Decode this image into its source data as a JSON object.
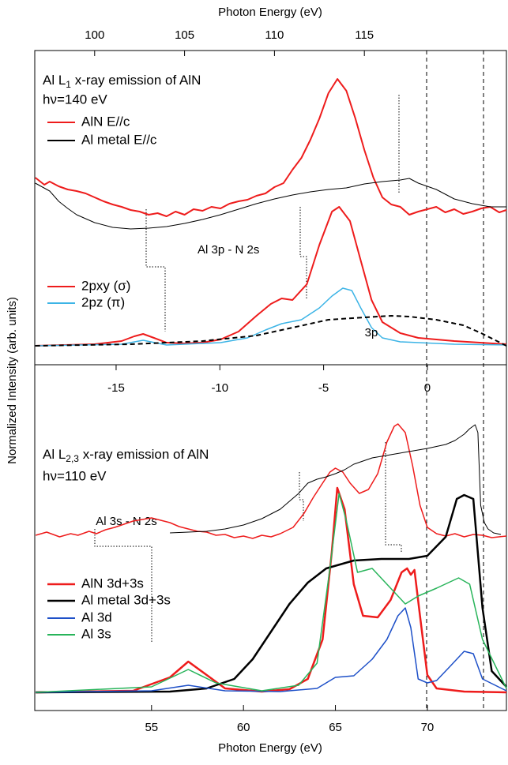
{
  "chart_data": [
    {
      "type": "line",
      "xlabel": "Photon Energy (eV)",
      "ylabel": "Normalized Intensity (arb. units)",
      "xlim": [
        96.67,
        122.9
      ],
      "xticks": [
        100,
        105,
        110,
        115
      ],
      "ylim": [
        0,
        398
      ],
      "title": "Al L",
      "title_sub": "1",
      "title_rest": " x-ray emission of AlN",
      "subtitle": "hν=140 eV",
      "annotations": [
        "Al 3p - N 2s"
      ],
      "series": [
        {
          "name": "AlN E//c",
          "color": "#ee1c1c",
          "line_width": 2,
          "x": [
            96.7,
            97.2,
            97.5,
            98,
            98.5,
            99,
            99.5,
            100,
            100.5,
            101,
            101.5,
            102,
            102.5,
            103,
            103.5,
            104,
            104.5,
            105,
            105.5,
            106,
            106.5,
            107,
            107.5,
            108,
            108.5,
            109,
            109.5,
            110,
            110.5,
            111,
            111.5,
            112,
            112.5,
            113,
            113.5,
            114,
            114.5,
            115,
            115.5,
            116,
            116.5,
            117,
            117.5,
            118,
            118.5,
            119,
            119.5,
            120,
            120.5,
            121,
            121.5,
            122,
            122.5,
            122.9
          ],
          "values": [
            237,
            228,
            232,
            226,
            222,
            220,
            217,
            212,
            207,
            203,
            200,
            196,
            194,
            190,
            192,
            188,
            194,
            190,
            197,
            195,
            200,
            198,
            204,
            207,
            209,
            214,
            217,
            225,
            230,
            247,
            262,
            285,
            312,
            344,
            362,
            347,
            312,
            272,
            237,
            212,
            203,
            200,
            190,
            194,
            197,
            200,
            193,
            197,
            191,
            194,
            198,
            200,
            193,
            196
          ]
        },
        {
          "name": "Al metal E//c",
          "color": "#000000",
          "line_width": 1,
          "x": [
            96.7,
            97.5,
            98,
            98.5,
            99,
            99.5,
            100,
            101,
            102,
            103,
            104,
            105,
            106,
            107,
            108,
            109,
            110,
            111,
            112,
            113,
            114,
            115,
            116,
            117,
            117.5,
            118,
            119,
            120,
            121,
            122,
            122.9
          ],
          "values": [
            230,
            220,
            207,
            198,
            190,
            185,
            180,
            174,
            172,
            173,
            175,
            179,
            184,
            190,
            197,
            204,
            210,
            215,
            219,
            222,
            224,
            229,
            232,
            234,
            236,
            230,
            222,
            210,
            204,
            200,
            200
          ]
        },
        {
          "name": "2pxy (σ)",
          "color": "#ee1c1c",
          "line_width": 2,
          "x": [
            96.7,
            100,
            101.5,
            102.2,
            102.7,
            103.3,
            104,
            105,
            106,
            107,
            108,
            109,
            109.8,
            110.4,
            111,
            111.8,
            112.5,
            113.2,
            113.6,
            114.2,
            114.8,
            115.4,
            116,
            117,
            118,
            120,
            122.9
          ],
          "values": [
            24,
            26,
            30,
            36,
            39,
            34,
            28,
            27,
            28,
            32,
            42,
            62,
            77,
            84,
            82,
            102,
            152,
            194,
            200,
            182,
            132,
            82,
            54,
            40,
            34,
            30,
            26
          ]
        },
        {
          "name": "2pz (π)",
          "color": "#3cb4e6",
          "line_width": 1.5,
          "x": [
            96.7,
            101.5,
            102.7,
            104,
            107,
            108.5,
            109.5,
            110.4,
            111.5,
            112.5,
            113.2,
            113.8,
            114.3,
            114.8,
            115.4,
            116,
            117,
            120,
            122.9
          ],
          "values": [
            24,
            26,
            31,
            25,
            28,
            34,
            44,
            52,
            57,
            72,
            87,
            97,
            94,
            72,
            47,
            34,
            29,
            26,
            25
          ]
        },
        {
          "name": "3p",
          "color": "#000000",
          "line_width": 2,
          "dashed": true,
          "x": [
            96.7,
            102,
            106,
            109,
            111,
            113,
            115,
            116.5,
            117.5,
            119,
            120.5,
            121.5,
            122.9
          ],
          "values": [
            24,
            26,
            30,
            37,
            47,
            57,
            60,
            62,
            61,
            57,
            50,
            40,
            24
          ]
        }
      ]
    },
    {
      "type": "line",
      "xlabel": "Photon Energy (eV)",
      "xlim": [
        48.65,
        74.3
      ],
      "xticks": [
        55,
        60,
        65,
        70
      ],
      "x2lim": [
        -18.92,
        3.81
      ],
      "x2ticks": [
        -15,
        -10,
        -5,
        0
      ],
      "ylim": [
        0,
        438
      ],
      "title": "Al L",
      "title_sub": "2,3",
      "title_rest": " x-ray emission of AlN",
      "subtitle": "hν=110 eV",
      "annotations": [
        "Al 3s - N 2s"
      ],
      "series": [
        {
          "name": null,
          "color": "#ee1c1c",
          "line_width": 1.5,
          "x": [
            48.7,
            49.3,
            50,
            50.6,
            51,
            51.6,
            52,
            52.5,
            53,
            53.5,
            54,
            54.5,
            55,
            55.5,
            56,
            56.5,
            57,
            57.5,
            58,
            58.5,
            59,
            59.5,
            60,
            60.5,
            61,
            61.5,
            62,
            62.7,
            63.3,
            63.8,
            64.3,
            64.7,
            65,
            65.4,
            65.8,
            66.3,
            66.8,
            67.3,
            67.8,
            68.2,
            68.4,
            68.8,
            69.2,
            69.6,
            70,
            70.5,
            71,
            71.5,
            72,
            72.5,
            73,
            73.5,
            74.3
          ],
          "values": [
            222,
            226,
            220,
            224,
            222,
            227,
            224,
            229,
            232,
            236,
            240,
            242,
            244,
            241,
            238,
            233,
            230,
            227,
            226,
            222,
            223,
            219,
            221,
            218,
            222,
            220,
            224,
            232,
            250,
            270,
            288,
            302,
            307,
            302,
            288,
            275,
            280,
            300,
            340,
            360,
            363,
            352,
            310,
            260,
            232,
            224,
            221,
            224,
            220,
            223,
            222,
            219,
            221
          ]
        },
        {
          "name": null,
          "color": "#000000",
          "line_width": 1,
          "x": [
            56,
            57,
            58,
            59,
            60,
            61,
            62,
            63,
            63.5,
            64,
            64.5,
            65,
            65.5,
            66,
            67,
            68,
            69,
            70,
            71,
            71.5,
            72,
            72.3,
            72.6,
            72.75,
            72.9,
            73.1,
            73.3,
            73.6,
            74
          ],
          "values": [
            225,
            226,
            227,
            230,
            235,
            243,
            255,
            275,
            288,
            293,
            296,
            300,
            305,
            312,
            320,
            324,
            328,
            332,
            337,
            342,
            350,
            357,
            362,
            352,
            260,
            238,
            230,
            225,
            223
          ]
        },
        {
          "name": "AlN 3d+3s",
          "color": "#ee1c1c",
          "line_width": 2.5,
          "x": [
            48.7,
            54,
            56,
            57,
            58,
            59,
            61,
            62.5,
            63.5,
            64.3,
            64.8,
            65.1,
            65.5,
            66,
            66.5,
            67.3,
            68,
            68.6,
            68.9,
            69.1,
            69.3,
            69.6,
            70,
            70.5,
            72,
            74.3
          ],
          "values": [
            23,
            25,
            42,
            62,
            45,
            28,
            24,
            27,
            40,
            90,
            200,
            282,
            255,
            160,
            120,
            118,
            140,
            175,
            180,
            172,
            178,
            120,
            45,
            28,
            24,
            23
          ]
        },
        {
          "name": "Al metal 3d+3s",
          "color": "#000000",
          "line_width": 2.5,
          "x": [
            48.7,
            56,
            58,
            59.5,
            60.5,
            61.5,
            62.5,
            63.5,
            64.5,
            66,
            67.5,
            69,
            70,
            71,
            71.6,
            72,
            72.5,
            73,
            73.5,
            74.3
          ],
          "values": [
            23,
            24,
            28,
            40,
            65,
            100,
            135,
            162,
            180,
            190,
            192,
            192,
            196,
            220,
            268,
            273,
            268,
            130,
            50,
            30
          ]
        },
        {
          "name": "Al 3d",
          "color": "#1e50c8",
          "line_width": 1.5,
          "x": [
            48.7,
            55,
            57,
            59,
            62,
            64,
            65,
            66,
            67,
            67.8,
            68.4,
            68.8,
            69.1,
            69.5,
            70,
            70.5,
            71.2,
            72,
            72.5,
            73,
            74.3
          ],
          "values": [
            23,
            25,
            32,
            25,
            24,
            28,
            42,
            44,
            65,
            90,
            120,
            130,
            105,
            40,
            35,
            38,
            55,
            75,
            72,
            40,
            25
          ]
        },
        {
          "name": "Al 3s",
          "color": "#28b45a",
          "line_width": 1.5,
          "x": [
            48.7,
            55,
            57,
            58.5,
            61,
            63,
            64,
            64.7,
            65.2,
            65.6,
            66.2,
            67,
            68,
            68.8,
            69.5,
            70.5,
            71.7,
            72.3,
            73,
            74.3
          ],
          "values": [
            23,
            30,
            52,
            35,
            25,
            32,
            60,
            180,
            275,
            240,
            175,
            180,
            155,
            135,
            145,
            155,
            168,
            160,
            90,
            28
          ]
        }
      ]
    }
  ]
}
